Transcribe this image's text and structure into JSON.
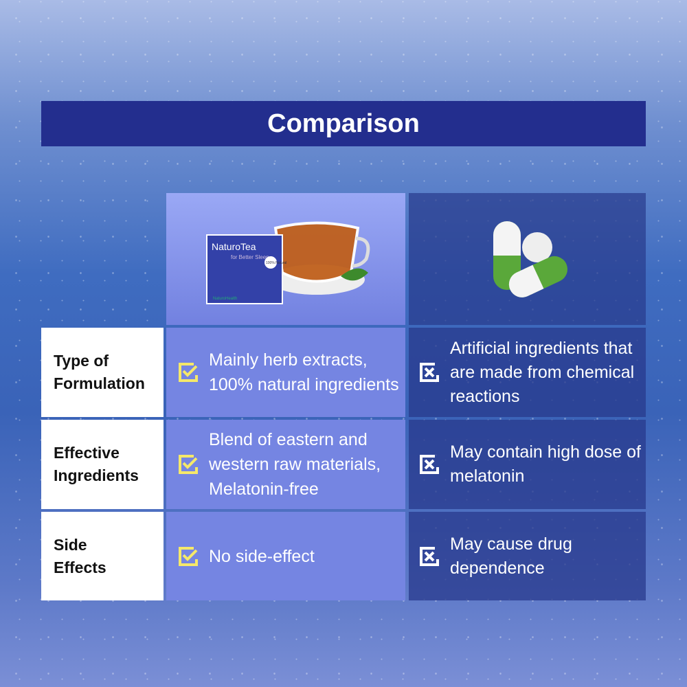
{
  "title": "Comparison",
  "products": {
    "tea": {
      "brand": "NaturoTea",
      "tagline": "for Better Sleep",
      "badge": "100% Natural",
      "maker": "NaturoHealth"
    },
    "pills": {
      "image": "capsule-pills"
    }
  },
  "rows": [
    {
      "label": "Type of Formulation",
      "tea": "Mainly herb extracts, 100% natural ingredients",
      "pills": "Artificial ingredients that are made from chemical reactions"
    },
    {
      "label": "Effective Ingredients",
      "tea": "Blend of eastern and western raw materials, Melatonin-free",
      "pills": "May contain high dose of melatonin"
    },
    {
      "label": "Side Effects",
      "tea": "No side-effect",
      "pills": "May cause drug dependence"
    }
  ],
  "colors": {
    "title_bg": "#232e8e",
    "tea_col": "#7585e2",
    "check": "#f5e86a"
  }
}
